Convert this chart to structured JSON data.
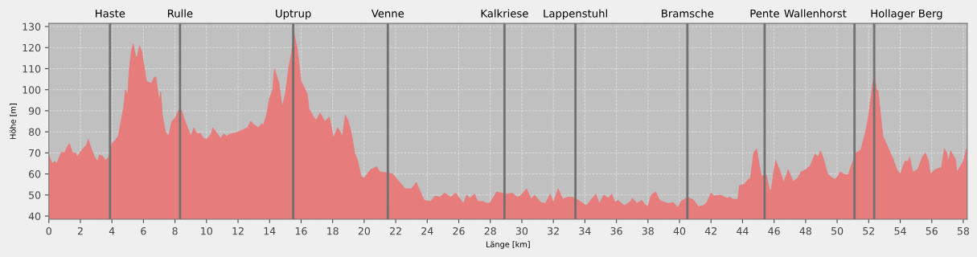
{
  "chart_data": {
    "type": "area",
    "xlabel": "Länge [km]",
    "ylabel": "Höhe [m]",
    "xlim": [
      0,
      58.25
    ],
    "ylim": [
      38.5,
      131.5
    ],
    "xticks": [
      0,
      2,
      4,
      6,
      8,
      10,
      12,
      14,
      16,
      18,
      20,
      22,
      24,
      26,
      28,
      30,
      32,
      34,
      36,
      38,
      40,
      42,
      44,
      46,
      48,
      50,
      52,
      54,
      56,
      58
    ],
    "yticks": [
      40,
      50,
      60,
      70,
      80,
      90,
      100,
      110,
      120,
      130
    ],
    "grid": true,
    "series": [
      {
        "color": "#e87878",
        "x": [
          0,
          0.2,
          0.4,
          0.5,
          0.8,
          1.0,
          1.1,
          1.3,
          1.5,
          1.7,
          1.8,
          2.0,
          2.4,
          2.5,
          2.7,
          2.9,
          3.1,
          3.2,
          3.4,
          3.6,
          3.8,
          4.0,
          4.2,
          4.4,
          4.6,
          4.75,
          4.85,
          5.0,
          5.1,
          5.25,
          5.35,
          5.5,
          5.6,
          5.75,
          5.9,
          6.0,
          6.2,
          6.5,
          6.7,
          6.8,
          6.9,
          7.0,
          7.1,
          7.2,
          7.4,
          7.6,
          7.8,
          8.0,
          8.2,
          8.4,
          8.6,
          8.8,
          9.0,
          9.2,
          9.4,
          9.6,
          9.8,
          10.0,
          10.3,
          10.4,
          10.6,
          10.9,
          11.1,
          11.3,
          11.5,
          11.8,
          12.0,
          12.3,
          12.6,
          12.8,
          13.0,
          13.3,
          13.5,
          13.6,
          13.8,
          14.0,
          14.2,
          14.3,
          14.6,
          14.8,
          15.0,
          15.2,
          15.4,
          15.55,
          15.75,
          16.0,
          16.2,
          16.4,
          16.5,
          16.8,
          16.95,
          17.2,
          17.5,
          17.8,
          18.05,
          18.3,
          18.5,
          18.6,
          18.8,
          19.0,
          19.2,
          19.4,
          19.6,
          19.8,
          20.0,
          20.4,
          20.8,
          21.0,
          21.5,
          21.8,
          22.2,
          22.6,
          23.0,
          23.3,
          23.6,
          23.8,
          24.2,
          24.5,
          24.8,
          25.1,
          25.5,
          25.8,
          26.1,
          26.3,
          26.5,
          26.7,
          27.0,
          27.2,
          27.5,
          27.8,
          28.0,
          28.4,
          28.7,
          29.1,
          29.4,
          29.7,
          29.9,
          30.3,
          30.6,
          30.8,
          31.2,
          31.5,
          31.8,
          32.0,
          32.3,
          32.6,
          32.9,
          33.2,
          33.5,
          33.8,
          34.1,
          34.3,
          34.7,
          34.9,
          35.2,
          35.5,
          35.7,
          35.9,
          36.1,
          36.5,
          36.9,
          37.0,
          37.3,
          37.6,
          37.8,
          38.0,
          38.2,
          38.5,
          38.7,
          38.9,
          39.3,
          39.6,
          39.9,
          40.1,
          40.5,
          40.8,
          40.9,
          41.2,
          41.5,
          41.7,
          42.0,
          42.2,
          42.6,
          43.0,
          43.2,
          43.4,
          43.7,
          43.8,
          44.1,
          44.3,
          44.5,
          44.7,
          44.9,
          45.0,
          45.2,
          45.5,
          45.7,
          45.8,
          46.0,
          46.1,
          46.4,
          46.6,
          46.9,
          47.2,
          47.5,
          47.7,
          48.0,
          48.3,
          48.6,
          48.8,
          48.95,
          49.1,
          49.4,
          49.7,
          49.9,
          50.2,
          50.4,
          50.7,
          50.9,
          51.2,
          51.5,
          51.8,
          52.0,
          52.2,
          52.35,
          52.5,
          52.6,
          52.9,
          53.2,
          53.5,
          53.8,
          54.0,
          54.3,
          54.5,
          54.6,
          54.8,
          55.1,
          55.4,
          55.6,
          55.8,
          55.9,
          56.2,
          56.5,
          56.6,
          56.8,
          56.95,
          57.05,
          57.2,
          57.5,
          57.6,
          58.0,
          58.2,
          58.25
        ],
        "values": [
          69,
          65,
          66,
          65,
          70.5,
          70,
          72,
          74.5,
          70,
          70,
          68,
          70.5,
          74,
          76.5,
          72,
          68,
          66,
          69,
          68.5,
          66.5,
          68,
          74.5,
          76,
          78,
          86,
          92,
          100,
          98,
          110,
          119,
          122,
          116,
          115.5,
          121,
          118,
          113,
          104,
          103,
          106,
          106,
          100,
          95,
          99,
          88,
          80,
          78,
          85,
          86.5,
          90,
          90.5,
          86,
          82,
          78,
          82,
          79,
          79.5,
          77,
          76.5,
          79,
          82,
          80,
          77,
          79,
          78,
          79,
          79.5,
          80,
          81,
          82,
          85,
          83.5,
          82,
          84,
          83,
          88,
          96,
          100,
          110,
          103,
          92,
          98,
          110,
          118,
          127,
          120,
          104,
          101,
          98,
          91,
          87,
          85.5,
          89,
          85,
          87,
          77,
          82,
          80,
          77.5,
          88,
          85,
          79,
          70,
          66,
          59,
          58,
          62,
          63.5,
          61,
          60.5,
          60,
          56.5,
          53,
          53,
          56,
          51,
          47.5,
          47,
          49.5,
          49,
          51,
          49,
          51,
          48,
          46,
          50,
          48.5,
          50.5,
          47,
          47,
          46,
          46.5,
          51.5,
          51,
          50.5,
          51,
          49,
          49.5,
          53,
          48,
          50,
          46.5,
          46,
          50.5,
          46.5,
          53,
          48,
          49,
          49,
          48,
          46.5,
          45,
          47,
          50.5,
          46,
          50,
          48.5,
          50.5,
          46.5,
          47.5,
          45,
          47,
          48.5,
          46,
          47.5,
          45.5,
          44.5,
          50,
          51.5,
          48,
          47,
          46,
          46.5,
          44,
          47,
          49,
          48,
          47.5,
          44.5,
          45,
          46,
          51,
          49.5,
          50,
          48.5,
          49,
          48,
          48,
          54.5,
          55,
          57,
          58,
          70,
          72,
          67,
          59,
          59.5,
          53,
          52,
          62,
          66.5,
          61,
          56,
          62,
          56.5,
          58,
          61,
          62,
          64,
          69.5,
          68,
          71,
          68,
          60,
          58,
          57.5,
          61,
          60,
          59.5,
          64,
          70,
          71.5,
          80,
          88,
          100,
          108,
          100,
          99.5,
          78,
          73,
          68,
          62,
          60,
          66,
          66,
          68,
          61,
          62,
          68,
          70,
          66,
          60,
          62,
          63,
          62.5,
          72,
          70,
          66,
          71,
          67,
          61,
          66,
          72,
          62
        ]
      }
    ],
    "ref_lines": [
      {
        "axis": "x",
        "value": 3.88,
        "label": "Haste",
        "color": "#707070"
      },
      {
        "axis": "x",
        "value": 8.32,
        "label": "Rulle",
        "color": "#707070"
      },
      {
        "axis": "x",
        "value": 15.5,
        "label": "Uptrup",
        "color": "#707070"
      },
      {
        "axis": "x",
        "value": 21.5,
        "label": "Venne",
        "color": "#707070"
      },
      {
        "axis": "x",
        "value": 28.9,
        "label": "Kalkriese",
        "color": "#707070"
      },
      {
        "axis": "x",
        "value": 33.4,
        "label": "Lappenstuhl",
        "color": "#707070"
      },
      {
        "axis": "x",
        "value": 40.5,
        "label": "Bramsche",
        "color": "#707070"
      },
      {
        "axis": "x",
        "value": 45.4,
        "label": "Pente",
        "color": "#707070"
      },
      {
        "axis": "x",
        "value": 51.1,
        "label": "Wallenhorst",
        "color": "#707070"
      },
      {
        "axis": "x",
        "value": 52.35,
        "label": "Hollager Berg",
        "color": "#707070"
      }
    ]
  }
}
